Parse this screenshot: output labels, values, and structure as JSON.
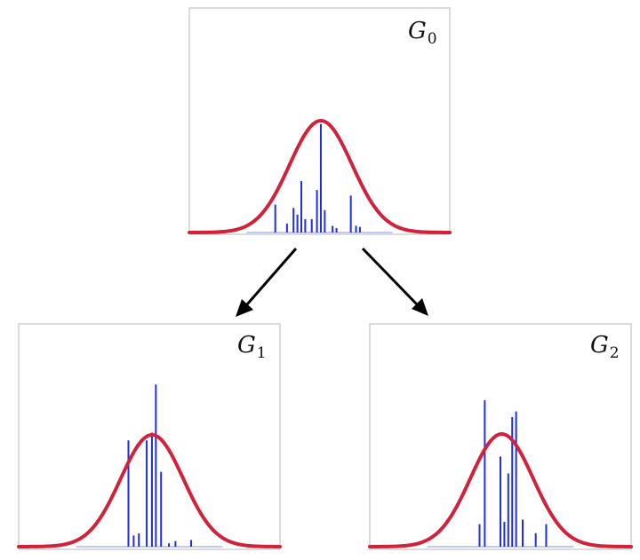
{
  "colors": {
    "curve": "#d0233b",
    "spikes": "#1f2ee0",
    "frame": "#b8b8b8",
    "arrow": "#000000"
  },
  "panels": [
    {
      "id": "g0",
      "label": "G",
      "subscript": "0",
      "spikes": [
        {
          "x": 0.33,
          "h": 0.25
        },
        {
          "x": 0.375,
          "h": 0.08
        },
        {
          "x": 0.4,
          "h": 0.22
        },
        {
          "x": 0.415,
          "h": 0.16
        },
        {
          "x": 0.43,
          "h": 0.46
        },
        {
          "x": 0.445,
          "h": 0.12
        },
        {
          "x": 0.47,
          "h": 0.12
        },
        {
          "x": 0.49,
          "h": 0.38
        },
        {
          "x": 0.505,
          "h": 0.97
        },
        {
          "x": 0.52,
          "h": 0.2
        },
        {
          "x": 0.55,
          "h": 0.06
        },
        {
          "x": 0.565,
          "h": 0.04
        },
        {
          "x": 0.62,
          "h": 0.33
        },
        {
          "x": 0.64,
          "h": 0.06
        },
        {
          "x": 0.655,
          "h": 0.05
        }
      ]
    },
    {
      "id": "g1",
      "label": "G",
      "subscript": "1",
      "spikes": [
        {
          "x": 0.42,
          "h": 0.95
        },
        {
          "x": 0.44,
          "h": 0.1
        },
        {
          "x": 0.46,
          "h": 0.12
        },
        {
          "x": 0.49,
          "h": 0.95
        },
        {
          "x": 0.51,
          "h": 1.02
        },
        {
          "x": 0.525,
          "h": 1.45
        },
        {
          "x": 0.545,
          "h": 0.67
        },
        {
          "x": 0.575,
          "h": 0.03
        },
        {
          "x": 0.6,
          "h": 0.05
        },
        {
          "x": 0.66,
          "h": 0.06
        }
      ]
    },
    {
      "id": "g2",
      "label": "G",
      "subscript": "2",
      "spikes": [
        {
          "x": 0.42,
          "h": 0.2
        },
        {
          "x": 0.44,
          "h": 1.3
        },
        {
          "x": 0.5,
          "h": 0.8
        },
        {
          "x": 0.515,
          "h": 0.22
        },
        {
          "x": 0.53,
          "h": 0.65
        },
        {
          "x": 0.545,
          "h": 1.15
        },
        {
          "x": 0.56,
          "h": 1.2
        },
        {
          "x": 0.585,
          "h": 0.24
        },
        {
          "x": 0.635,
          "h": 0.12
        },
        {
          "x": 0.675,
          "h": 0.2
        }
      ]
    }
  ]
}
